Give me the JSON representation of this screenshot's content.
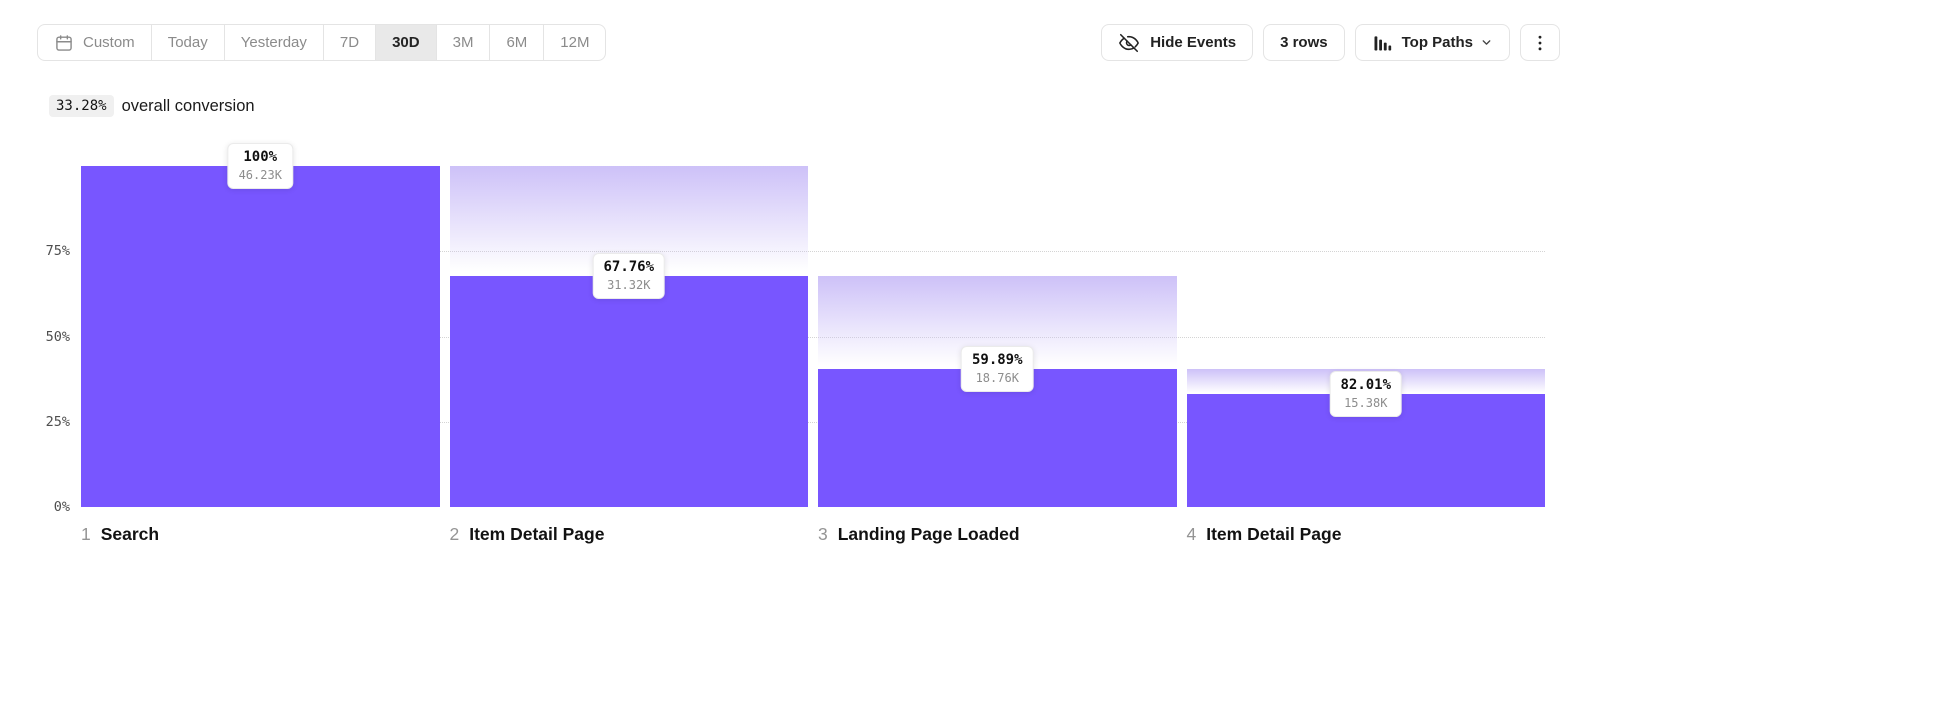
{
  "toolbar": {
    "date_ranges": [
      {
        "label": "Custom",
        "icon": "calendar-icon",
        "selected": false
      },
      {
        "label": "Today",
        "selected": false
      },
      {
        "label": "Yesterday",
        "selected": false
      },
      {
        "label": "7D",
        "selected": false
      },
      {
        "label": "30D",
        "selected": true
      },
      {
        "label": "3M",
        "selected": false
      },
      {
        "label": "6M",
        "selected": false
      },
      {
        "label": "12M",
        "selected": false
      }
    ],
    "hide_events_label": "Hide Events",
    "rows_label": "3 rows",
    "top_paths_label": "Top Paths"
  },
  "summary": {
    "overall_conversion": "33.28%",
    "overall_conversion_text": "overall conversion"
  },
  "chart_data": {
    "type": "bar",
    "subtype": "funnel",
    "title": "",
    "ylim": [
      0,
      100
    ],
    "grid": "dotted-horizontal",
    "y_axis": {
      "ticks": [
        {
          "label": "75%",
          "value": 75,
          "grid": true
        },
        {
          "label": "50%",
          "value": 50,
          "grid": true
        },
        {
          "label": "25%",
          "value": 25,
          "grid": true
        },
        {
          "label": "0%",
          "value": 0,
          "grid": false
        }
      ]
    },
    "steps": [
      {
        "index": "1",
        "label": "Search",
        "conversion_rate": "100%",
        "count": "46.23K",
        "overall_pct": 100,
        "prev_overall_pct": 100
      },
      {
        "index": "2",
        "label": "Item Detail Page",
        "conversion_rate": "67.76%",
        "count": "31.32K",
        "overall_pct": 67.76,
        "prev_overall_pct": 100
      },
      {
        "index": "3",
        "label": "Landing Page Loaded",
        "conversion_rate": "59.89%",
        "count": "18.76K",
        "overall_pct": 40.58,
        "prev_overall_pct": 67.76
      },
      {
        "index": "4",
        "label": "Item Detail Page",
        "conversion_rate": "82.01%",
        "count": "15.38K",
        "overall_pct": 33.27,
        "prev_overall_pct": 40.58
      }
    ],
    "colors": {
      "bar": "#7856ff",
      "dropoff_top": "#cdc1f8",
      "grid": "#d4d4d4"
    }
  }
}
